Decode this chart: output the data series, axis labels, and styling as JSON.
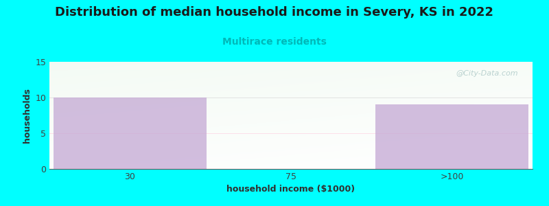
{
  "title": "Distribution of median household income in Severy, KS in 2022",
  "subtitle": "Multirace residents",
  "subtitle_color": "#00b8b8",
  "xlabel": "household income ($1000)",
  "ylabel": "households",
  "categories": [
    "30",
    "75",
    ">100"
  ],
  "values": [
    10,
    0,
    9
  ],
  "bar_color": "#c4a8d4",
  "background_color": "#00ffff",
  "ylim": [
    0,
    15
  ],
  "yticks": [
    0,
    5,
    10,
    15
  ],
  "title_fontsize": 13,
  "subtitle_fontsize": 10,
  "axis_label_fontsize": 9,
  "tick_fontsize": 9,
  "watermark": "@City-Data.com"
}
